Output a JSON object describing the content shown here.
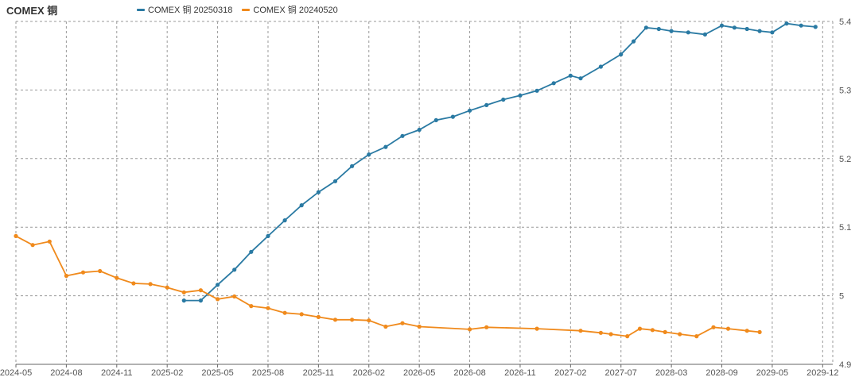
{
  "title": "COMEX 铜",
  "legend": [
    {
      "name": "COMEX 铜 20250318",
      "color": "#2a7aa3"
    },
    {
      "name": "COMEX 铜 20240520",
      "color": "#f08a1c"
    }
  ],
  "chart_data": {
    "type": "line",
    "title": "COMEX 铜",
    "xlabel": "",
    "ylabel": "",
    "x_ticks": [
      "2024-05",
      "2024-08",
      "2024-11",
      "2025-02",
      "2025-05",
      "2025-08",
      "2025-11",
      "2026-02",
      "2026-05",
      "2026-08",
      "2026-11",
      "2027-02",
      "2027-07",
      "2028-03",
      "2028-09",
      "2029-05",
      "2029-12"
    ],
    "y_ticks": [
      "4.9",
      "5",
      "5.1",
      "5.2",
      "5.3",
      "5.4"
    ],
    "ylim": [
      4.9,
      5.4
    ],
    "y_axis_position": "right",
    "grid": true,
    "legend_position": "top-left",
    "series": [
      {
        "name": "COMEX 铜 20250318",
        "color": "#2a7aa3",
        "points": [
          [
            "2025-03",
            4.993
          ],
          [
            "2025-04",
            4.993
          ],
          [
            "2025-05",
            5.016
          ],
          [
            "2025-06",
            5.038
          ],
          [
            "2025-07",
            5.064
          ],
          [
            "2025-08",
            5.087
          ],
          [
            "2025-09",
            5.11
          ],
          [
            "2025-10",
            5.132
          ],
          [
            "2025-11",
            5.151
          ],
          [
            "2025-12",
            5.167
          ],
          [
            "2026-01",
            5.189
          ],
          [
            "2026-02",
            5.206
          ],
          [
            "2026-03",
            5.217
          ],
          [
            "2026-04",
            5.233
          ],
          [
            "2026-05",
            5.242
          ],
          [
            "2026-06",
            5.256
          ],
          [
            "2026-07",
            5.261
          ],
          [
            "2026-08",
            5.27
          ],
          [
            "2026-09",
            5.278
          ],
          [
            "2026-10",
            5.286
          ],
          [
            "2026-11",
            5.292
          ],
          [
            "2026-12",
            5.299
          ],
          [
            "2027-01",
            5.31
          ],
          [
            "2027-02",
            5.321
          ],
          [
            "2027-03",
            5.317
          ],
          [
            "2027-05",
            5.334
          ],
          [
            "2027-07",
            5.352
          ],
          [
            "2027-09",
            5.371
          ],
          [
            "2027-11",
            5.391
          ],
          [
            "2028-01",
            5.389
          ],
          [
            "2028-03",
            5.386
          ],
          [
            "2028-05",
            5.384
          ],
          [
            "2028-07",
            5.381
          ],
          [
            "2028-09",
            5.394
          ],
          [
            "2028-11",
            5.391
          ],
          [
            "2029-01",
            5.389
          ],
          [
            "2029-03",
            5.386
          ],
          [
            "2029-05",
            5.384
          ],
          [
            "2029-07",
            5.397
          ],
          [
            "2029-09",
            5.394
          ],
          [
            "2029-11",
            5.392
          ]
        ]
      },
      {
        "name": "COMEX 铜 20240520",
        "color": "#f08a1c",
        "points": [
          [
            "2024-05",
            5.087
          ],
          [
            "2024-06",
            5.074
          ],
          [
            "2024-07",
            5.079
          ],
          [
            "2024-08",
            5.029
          ],
          [
            "2024-09",
            5.034
          ],
          [
            "2024-10",
            5.036
          ],
          [
            "2024-11",
            5.026
          ],
          [
            "2024-12",
            5.018
          ],
          [
            "2025-01",
            5.017
          ],
          [
            "2025-02",
            5.012
          ],
          [
            "2025-03",
            5.005
          ],
          [
            "2025-04",
            5.008
          ],
          [
            "2025-05",
            4.995
          ],
          [
            "2025-06",
            4.999
          ],
          [
            "2025-07",
            4.985
          ],
          [
            "2025-08",
            4.982
          ],
          [
            "2025-09",
            4.975
          ],
          [
            "2025-10",
            4.973
          ],
          [
            "2025-11",
            4.969
          ],
          [
            "2025-12",
            4.965
          ],
          [
            "2026-01",
            4.965
          ],
          [
            "2026-02",
            4.964
          ],
          [
            "2026-03",
            4.955
          ],
          [
            "2026-04",
            4.96
          ],
          [
            "2026-05",
            4.955
          ],
          [
            "2026-08",
            4.951
          ],
          [
            "2026-09",
            4.954
          ],
          [
            "2026-12",
            4.952
          ],
          [
            "2027-03",
            4.949
          ],
          [
            "2027-05",
            4.946
          ],
          [
            "2027-06",
            4.944
          ],
          [
            "2027-08",
            4.941
          ],
          [
            "2027-10",
            4.952
          ],
          [
            "2027-12",
            4.95
          ],
          [
            "2028-02",
            4.947
          ],
          [
            "2028-04",
            4.944
          ],
          [
            "2028-06",
            4.941
          ],
          [
            "2028-08",
            4.954
          ],
          [
            "2028-10",
            4.952
          ],
          [
            "2029-01",
            4.949
          ],
          [
            "2029-03",
            4.947
          ]
        ]
      }
    ]
  }
}
